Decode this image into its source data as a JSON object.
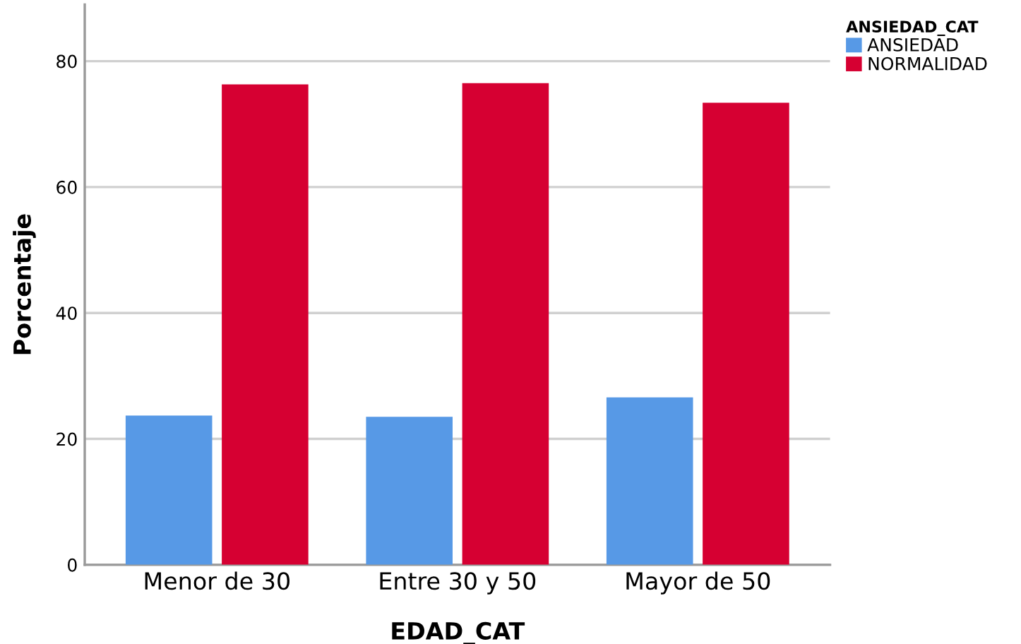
{
  "chart_data": {
    "type": "bar",
    "xlabel": "EDAD_CAT",
    "ylabel": "Porcentaje",
    "legend_title": "ANSIEDAD_CAT",
    "categories": [
      "Menor de 30",
      "Entre 30 y 50",
      "Mayor de 50"
    ],
    "series": [
      {
        "name": "ANSIEDAD",
        "color": "#5799e6",
        "values": [
          23.7,
          23.5,
          26.6
        ]
      },
      {
        "name": "NORMALIDAD",
        "color": "#d60032",
        "values": [
          76.3,
          76.5,
          73.4
        ]
      }
    ],
    "ylim": [
      0,
      89
    ],
    "yticks": [
      0,
      20,
      40,
      60,
      80
    ],
    "grid": "y",
    "legend": "top right"
  }
}
